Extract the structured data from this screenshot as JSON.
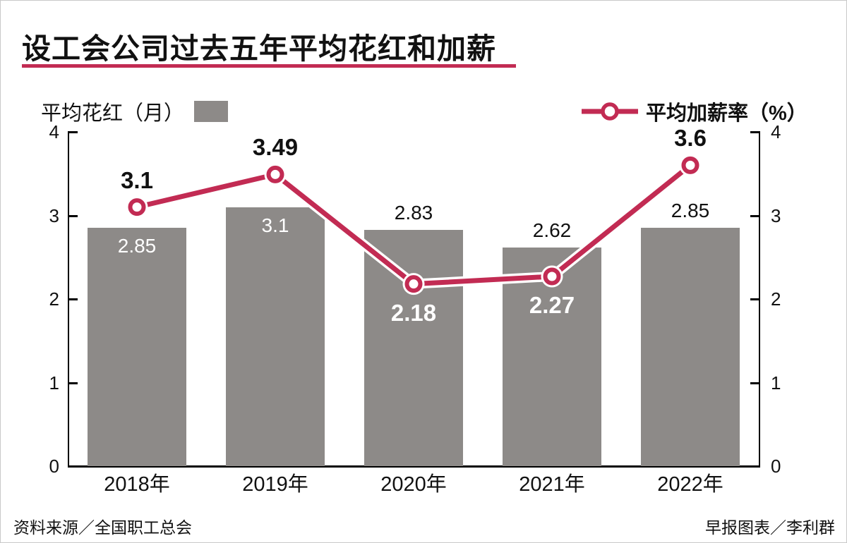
{
  "title": "设工会公司过去五年平均花红和加薪",
  "legend": {
    "bars": "平均花红（月）",
    "line": "平均加薪率（%）"
  },
  "footer": {
    "source": "资料来源／全国职工总会",
    "credit": "早报图表／李利群"
  },
  "colors": {
    "bar": "#8d8a88",
    "line": "#c22b53",
    "accent": "#c22b53",
    "text": "#111111",
    "inside_label": "#ffffff"
  },
  "chart_data": {
    "type": "bar",
    "subtype": "bar+line combo, dual mirrored y-axes",
    "categories": [
      "2018年",
      "2019年",
      "2020年",
      "2021年",
      "2022年"
    ],
    "series": [
      {
        "name": "平均花红（月）",
        "type": "bar",
        "values": [
          2.85,
          3.1,
          2.83,
          2.62,
          2.85
        ],
        "labels": [
          "2.85",
          "3.1",
          "2.83",
          "2.62",
          "2.85"
        ],
        "label_positions": [
          "inside",
          "inside",
          "above",
          "above",
          "above"
        ]
      },
      {
        "name": "平均加薪率（%）",
        "type": "line",
        "values": [
          3.1,
          3.49,
          2.18,
          2.27,
          3.6
        ],
        "labels": [
          "3.1",
          "3.49",
          "2.18",
          "2.27",
          "3.6"
        ],
        "label_positions": [
          "above",
          "above",
          "below",
          "below",
          "above"
        ]
      }
    ],
    "y_ticks": [
      0,
      1,
      2,
      3,
      4
    ],
    "ylim": [
      0,
      4
    ],
    "xlabel": "",
    "ylabel_left": "平均花红（月）",
    "ylabel_right": "平均加薪率（%）",
    "grid": false,
    "legend_position": "top"
  }
}
